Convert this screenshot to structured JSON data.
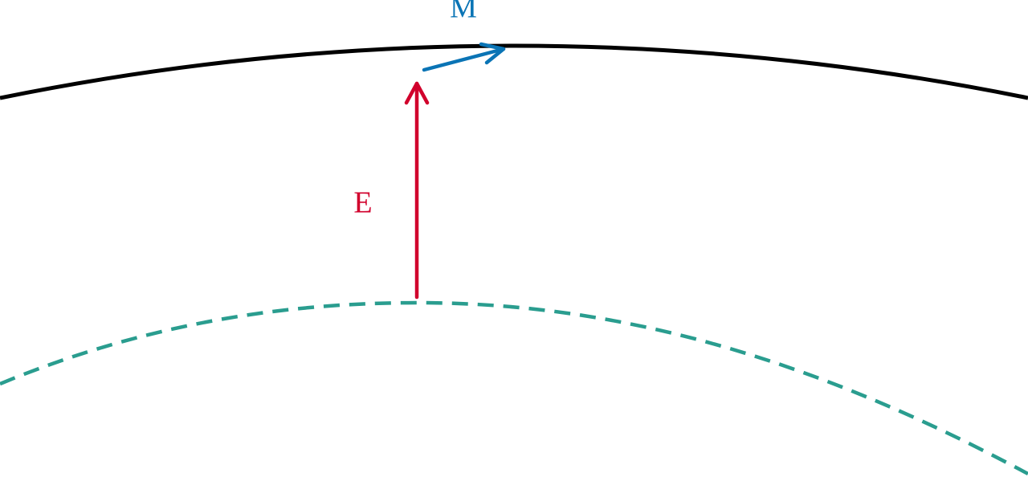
{
  "labels": [
    {
      "text": "M"
    },
    {
      "text": "E"
    }
  ]
}
